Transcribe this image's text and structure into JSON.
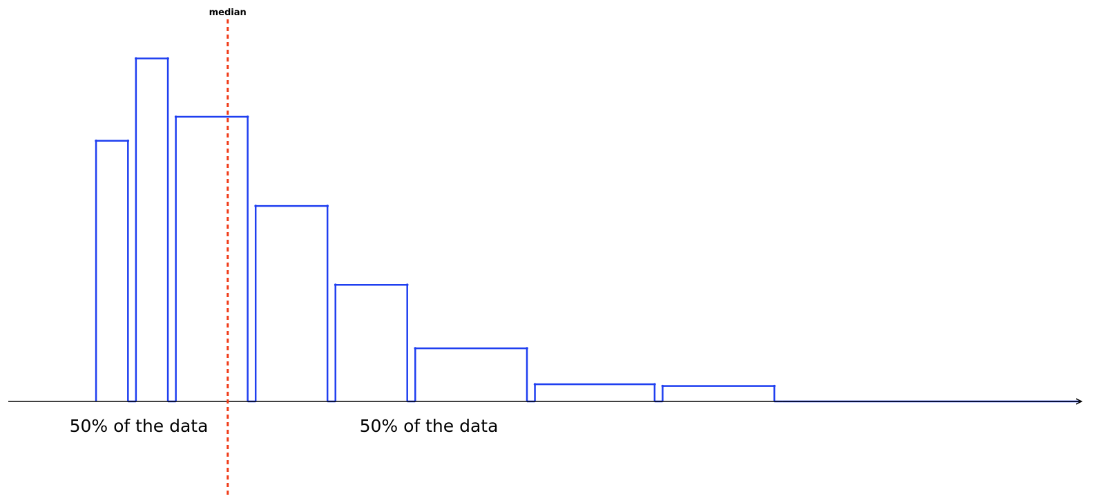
{
  "chart_data": {
    "type": "bar",
    "title": "",
    "xlabel": "",
    "ylabel": "",
    "bins": [
      {
        "x0": 0.0,
        "x1": 0.8,
        "value": 0.76
      },
      {
        "x0": 1.0,
        "x1": 1.8,
        "value": 1.0
      },
      {
        "x0": 2.0,
        "x1": 3.8,
        "value": 0.83
      },
      {
        "x0": 4.0,
        "x1": 5.8,
        "value": 0.57
      },
      {
        "x0": 6.0,
        "x1": 7.8,
        "value": 0.34
      },
      {
        "x0": 8.0,
        "x1": 10.8,
        "value": 0.155
      },
      {
        "x0": 11.0,
        "x1": 14.0,
        "value": 0.05
      },
      {
        "x0": 14.2,
        "x1": 17.0,
        "value": 0.045
      }
    ],
    "xlim": [
      -2.2,
      24.7
    ],
    "ylim": [
      0,
      1.1
    ],
    "median": {
      "x": 3.3,
      "label": "median"
    },
    "annotations": [
      {
        "text": "50% of the data",
        "side": "left"
      },
      {
        "text": "50% of the data",
        "side": "right"
      }
    ],
    "colors": {
      "bars": "#1f3ff0",
      "median": "#f03a17",
      "axis": "#000000"
    },
    "axis_arrow": true,
    "grid": false,
    "legend": false
  }
}
